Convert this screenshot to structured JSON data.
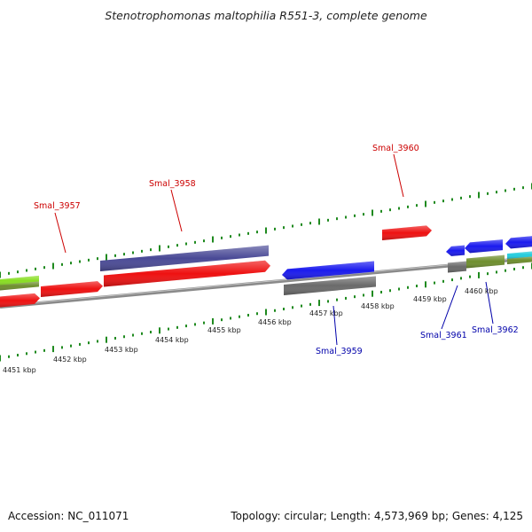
{
  "title": "Stenotrophomonas maltophilia R551-3, complete genome",
  "accession": "Accession: NC_011071",
  "summary": "Topology: circular; Length: 4,573,969 bp; Genes: 4,125",
  "colors": {
    "backbone": "#8a8a8a",
    "tick": "#1f8a1f",
    "label_forward": "#cc0000",
    "label_reverse": "#0000aa",
    "red": "#ee1111",
    "navy": "#4a4a96",
    "lime": "#88dd22",
    "olive": "#6e8e2e",
    "blue": "#1a1aee",
    "gray": "#6a6a6a",
    "cyan": "#22ccdd"
  },
  "tick_labels": [
    {
      "label": "4451 kbp"
    },
    {
      "label": "4452 kbp"
    },
    {
      "label": "4453 kbp"
    },
    {
      "label": "4454 kbp"
    },
    {
      "label": "4455 kbp"
    },
    {
      "label": "4456 kbp"
    },
    {
      "label": "4457 kbp"
    },
    {
      "label": "4458 kbp"
    },
    {
      "label": "4459 kbp"
    },
    {
      "label": "4460 kbp"
    }
  ],
  "gene_labels": [
    {
      "name": "Smal_3957",
      "strand": "forward"
    },
    {
      "name": "Smal_3958",
      "strand": "forward"
    },
    {
      "name": "Smal_3960",
      "strand": "forward"
    },
    {
      "name": "Smal_3959",
      "strand": "reverse"
    },
    {
      "name": "Smal_3961",
      "strand": "reverse"
    },
    {
      "name": "Smal_3962",
      "strand": "reverse"
    }
  ],
  "features": [
    {
      "id": "f-lime",
      "color": "lime"
    },
    {
      "id": "f-olive-left",
      "color": "olive"
    },
    {
      "id": "f-red-left",
      "color": "red"
    },
    {
      "id": "f-red-3957",
      "color": "red"
    },
    {
      "id": "f-navy-3958",
      "color": "navy"
    },
    {
      "id": "f-red-3958",
      "color": "red"
    },
    {
      "id": "f-red-3960",
      "color": "red"
    },
    {
      "id": "f-blue-3959",
      "color": "blue"
    },
    {
      "id": "f-gray-3959",
      "color": "gray"
    },
    {
      "id": "f-blue-3961",
      "color": "blue"
    },
    {
      "id": "f-gray-3961",
      "color": "gray"
    },
    {
      "id": "f-blue-3962",
      "color": "blue"
    },
    {
      "id": "f-olive-3962",
      "color": "olive"
    },
    {
      "id": "f-blue-right",
      "color": "blue"
    },
    {
      "id": "f-cyan-right",
      "color": "cyan"
    },
    {
      "id": "f-olive-right",
      "color": "olive"
    }
  ]
}
